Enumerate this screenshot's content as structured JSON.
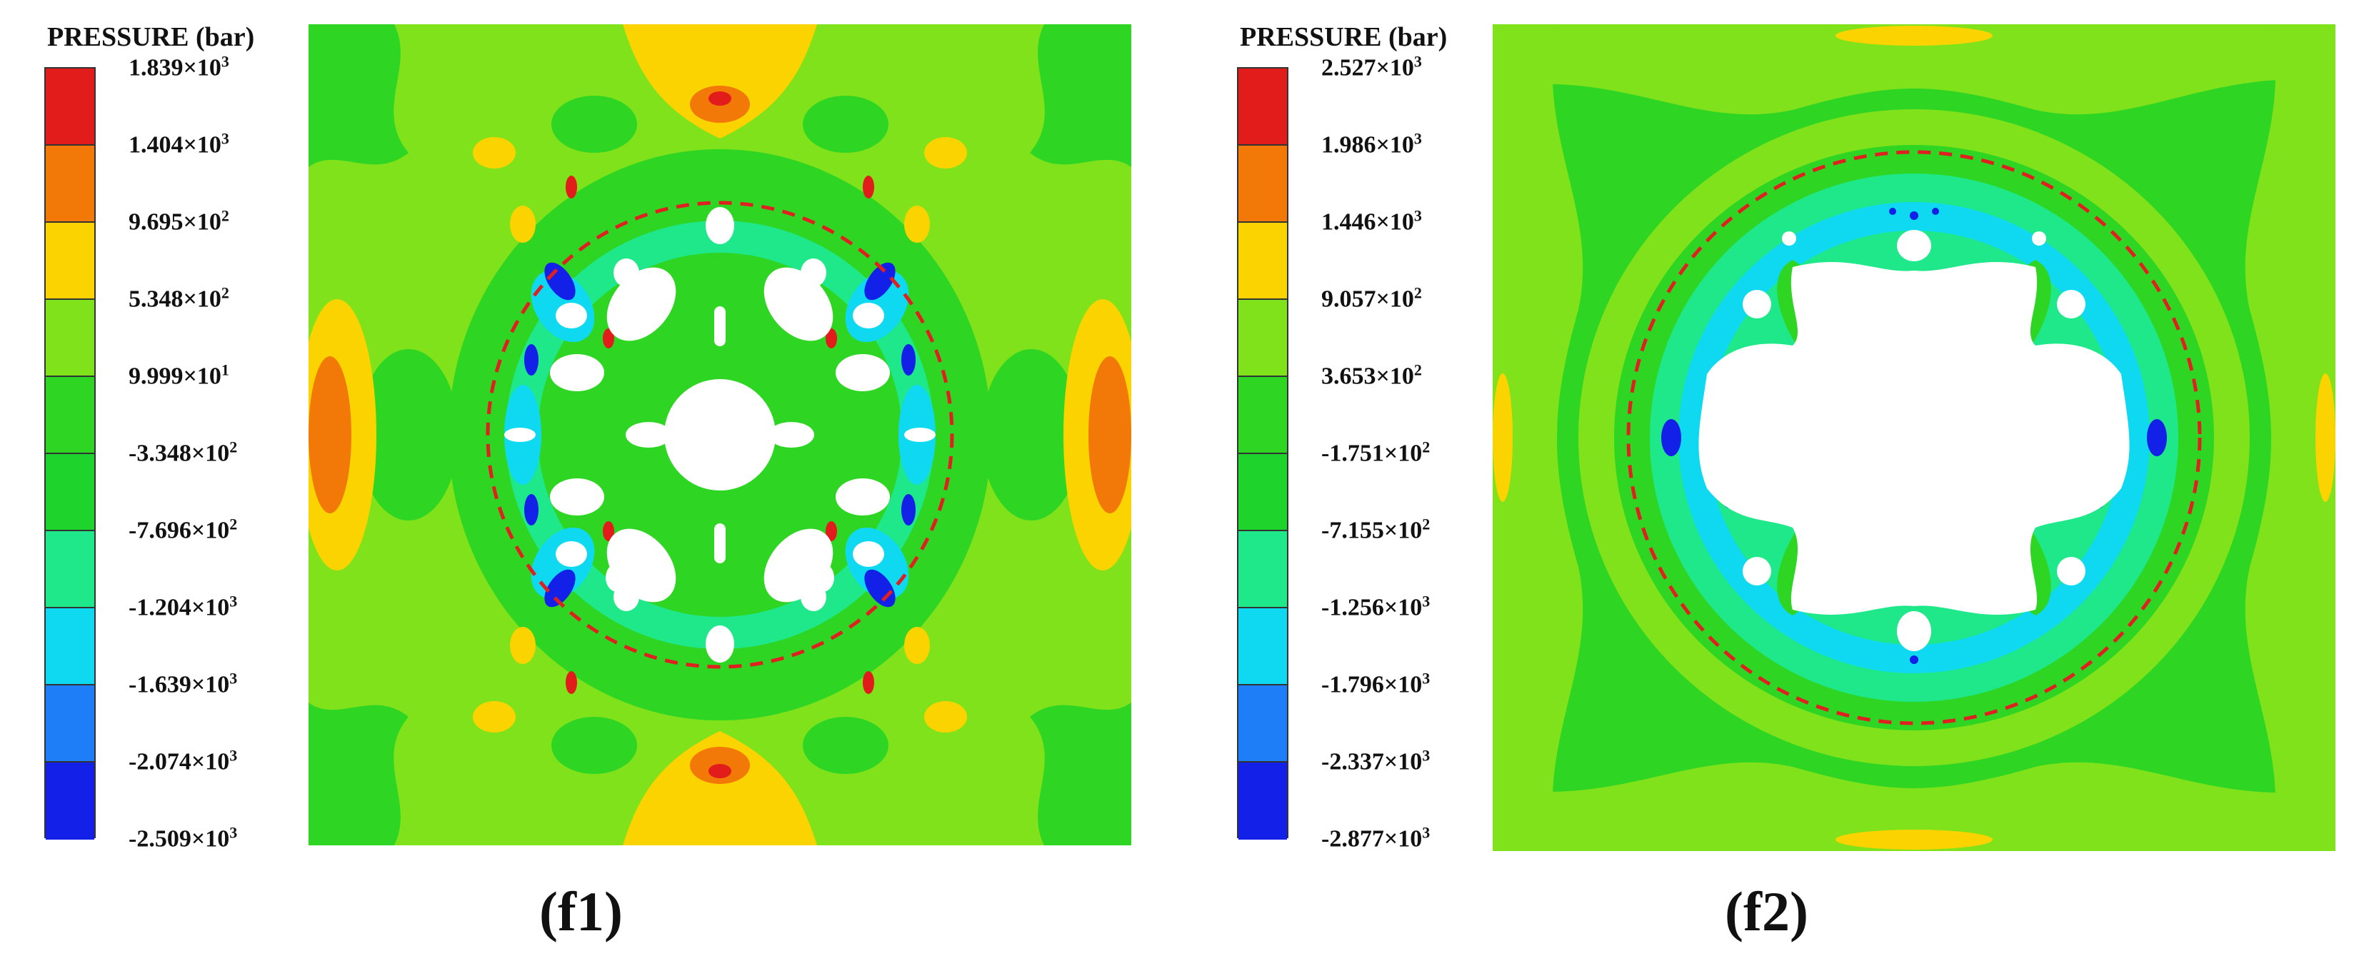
{
  "figure": {
    "panels": [
      {
        "id": "f1",
        "legend_title": "PRESSURE (bar)",
        "colors": [
          "#e21b1b",
          "#f27807",
          "#fbd400",
          "#7fe21a",
          "#2ed623",
          "#1ed42c",
          "#1ee88a",
          "#0fd9f0",
          "#1e7ef7",
          "#1320e8"
        ],
        "ticks": [
          {
            "mant": "1.839",
            "exp": "3"
          },
          {
            "mant": "1.404",
            "exp": "3"
          },
          {
            "mant": "9.695",
            "exp": "2"
          },
          {
            "mant": "5.348",
            "exp": "2"
          },
          {
            "mant": "9.999",
            "exp": "1"
          },
          {
            "mant": "-3.348",
            "exp": "2"
          },
          {
            "mant": "-7.696",
            "exp": "2"
          },
          {
            "mant": "-1.204",
            "exp": "3"
          },
          {
            "mant": "-1.639",
            "exp": "3"
          },
          {
            "mant": "-2.074",
            "exp": "3"
          },
          {
            "mant": "-2.509",
            "exp": "3"
          }
        ],
        "caption": "(f1)"
      },
      {
        "id": "f2",
        "legend_title": "PRESSURE (bar)",
        "colors": [
          "#e21b1b",
          "#f27807",
          "#fbd400",
          "#7fe21a",
          "#2ed623",
          "#1ed42c",
          "#1ee88a",
          "#0fd9f0",
          "#1e7ef7",
          "#1320e8"
        ],
        "ticks": [
          {
            "mant": "2.527",
            "exp": "3"
          },
          {
            "mant": "1.986",
            "exp": "3"
          },
          {
            "mant": "1.446",
            "exp": "3"
          },
          {
            "mant": "9.057",
            "exp": "2"
          },
          {
            "mant": "3.653",
            "exp": "2"
          },
          {
            "mant": "-1.751",
            "exp": "2"
          },
          {
            "mant": "-7.155",
            "exp": "2"
          },
          {
            "mant": "-1.256",
            "exp": "3"
          },
          {
            "mant": "-1.796",
            "exp": "3"
          },
          {
            "mant": "-2.337",
            "exp": "3"
          },
          {
            "mant": "-2.877",
            "exp": "3"
          }
        ],
        "caption": "(f2)"
      }
    ]
  }
}
